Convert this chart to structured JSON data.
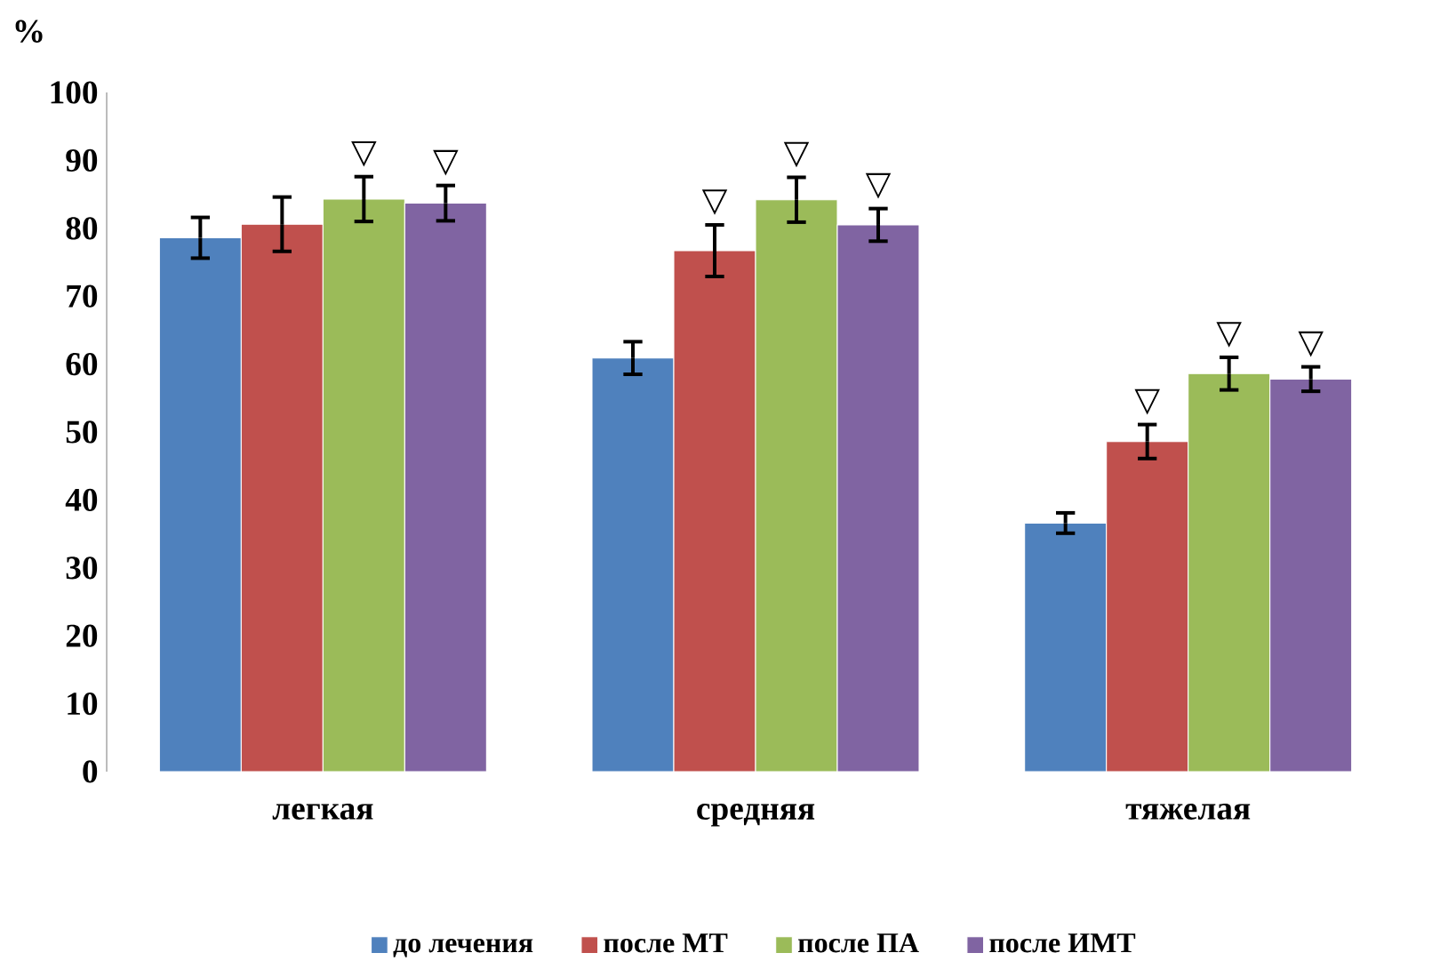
{
  "chart_data": {
    "type": "bar",
    "ylabel": "%",
    "categories": [
      "легкая",
      "средняя",
      "тяжелая"
    ],
    "series": [
      {
        "name": "до лечения",
        "color": "#4f81bd",
        "values": [
          78.6,
          60.9,
          36.6
        ],
        "errors": [
          3.0,
          2.4,
          1.5
        ]
      },
      {
        "name": "после МТ",
        "color": "#c0504d",
        "values": [
          80.6,
          76.7,
          48.6
        ],
        "errors": [
          4.0,
          3.8,
          2.5
        ]
      },
      {
        "name": "после ПА",
        "color": "#9bbb59",
        "values": [
          84.3,
          84.2,
          58.6
        ],
        "errors": [
          3.3,
          3.3,
          2.4
        ]
      },
      {
        "name": "после ИМТ",
        "color": "#8064a2",
        "values": [
          83.7,
          80.5,
          57.8
        ],
        "errors": [
          2.6,
          2.4,
          1.8
        ]
      }
    ],
    "ylim": [
      0,
      100
    ],
    "yticks": [
      0,
      10,
      20,
      30,
      40,
      50,
      60,
      70,
      80,
      90,
      100
    ],
    "grid": false,
    "legend": "bottom",
    "annotations": [
      "▽",
      "▽",
      "▽",
      "▽",
      "▽",
      "▽",
      "▽",
      "▽"
    ]
  }
}
